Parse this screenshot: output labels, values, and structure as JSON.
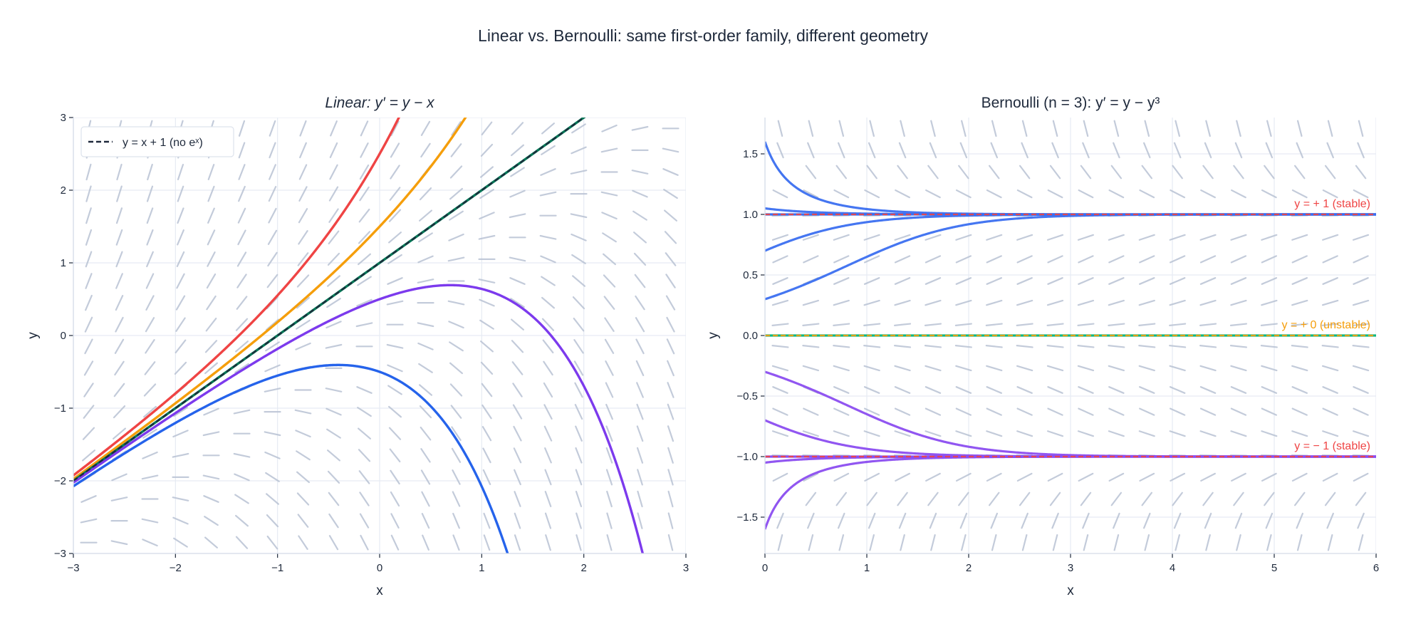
{
  "suptitle": "Linear vs. Bernoulli: same first-order family, different geometry",
  "chart_data": [
    {
      "type": "line",
      "title": "Linear: y′ = y − x",
      "xlabel": "x",
      "ylabel": "y",
      "xlim": [
        -3,
        3
      ],
      "ylim": [
        -3,
        3
      ],
      "xticks": [
        "−3",
        "−2",
        "−1",
        "0",
        "1",
        "2",
        "3"
      ],
      "yticks": [
        "−3",
        "−2",
        "−1",
        "0",
        "1",
        "2",
        "3"
      ],
      "grid": true,
      "slope_field": "y - x",
      "solution_family": "y = x + 1 + C·e^x",
      "series": [
        {
          "C": 1.5,
          "color": "#ef4444"
        },
        {
          "C": 0.5,
          "color": "#f59e0b"
        },
        {
          "C": 0,
          "color": "#047857"
        },
        {
          "C": -0.5,
          "color": "#7c3aed"
        },
        {
          "C": -1.5,
          "color": "#2563eb"
        }
      ],
      "reference_line": {
        "name": "y = x + 1 (no eˣ)",
        "color": "#1e293b",
        "style": "dashed"
      },
      "legend": {
        "placement": "top-left",
        "label": "y = x + 1 (no eˣ)"
      }
    },
    {
      "type": "line",
      "title": "Bernoulli (n = 3): y′ = y − y³",
      "xlabel": "x",
      "ylabel": "y",
      "xlim": [
        0,
        6
      ],
      "ylim": [
        -1.8,
        1.8
      ],
      "xticks": [
        "0",
        "1",
        "2",
        "3",
        "4",
        "5",
        "6"
      ],
      "yticks": [
        "−1.5",
        "−1.0",
        "−0.5",
        "0.0",
        "0.5",
        "1.0",
        "1.5"
      ],
      "grid": true,
      "slope_field": "y - y^3",
      "series": [
        {
          "y0": 1.6,
          "color": "#3b6ff0"
        },
        {
          "y0": 1.05,
          "color": "#3b6ff0"
        },
        {
          "y0": 0.7,
          "color": "#3b6ff0"
        },
        {
          "y0": 0.3,
          "color": "#3b6ff0"
        },
        {
          "y0": -0.3,
          "color": "#8b4df0"
        },
        {
          "y0": -0.7,
          "color": "#8b4df0"
        },
        {
          "y0": -1.05,
          "color": "#8b4df0"
        },
        {
          "y0": -1.6,
          "color": "#8b4df0"
        }
      ],
      "equilibria": [
        {
          "y": 1,
          "label": "y = + 1 (stable)",
          "color": "#ef4444",
          "base_color": "#3b6ff0"
        },
        {
          "y": 0,
          "label": "y = + 0 (unstable)",
          "color": "#f59e0b",
          "base_color": "#10b981"
        },
        {
          "y": -1,
          "label": "y = − 1 (stable)",
          "color": "#ef4444",
          "base_color": "#8b4df0"
        }
      ]
    }
  ]
}
